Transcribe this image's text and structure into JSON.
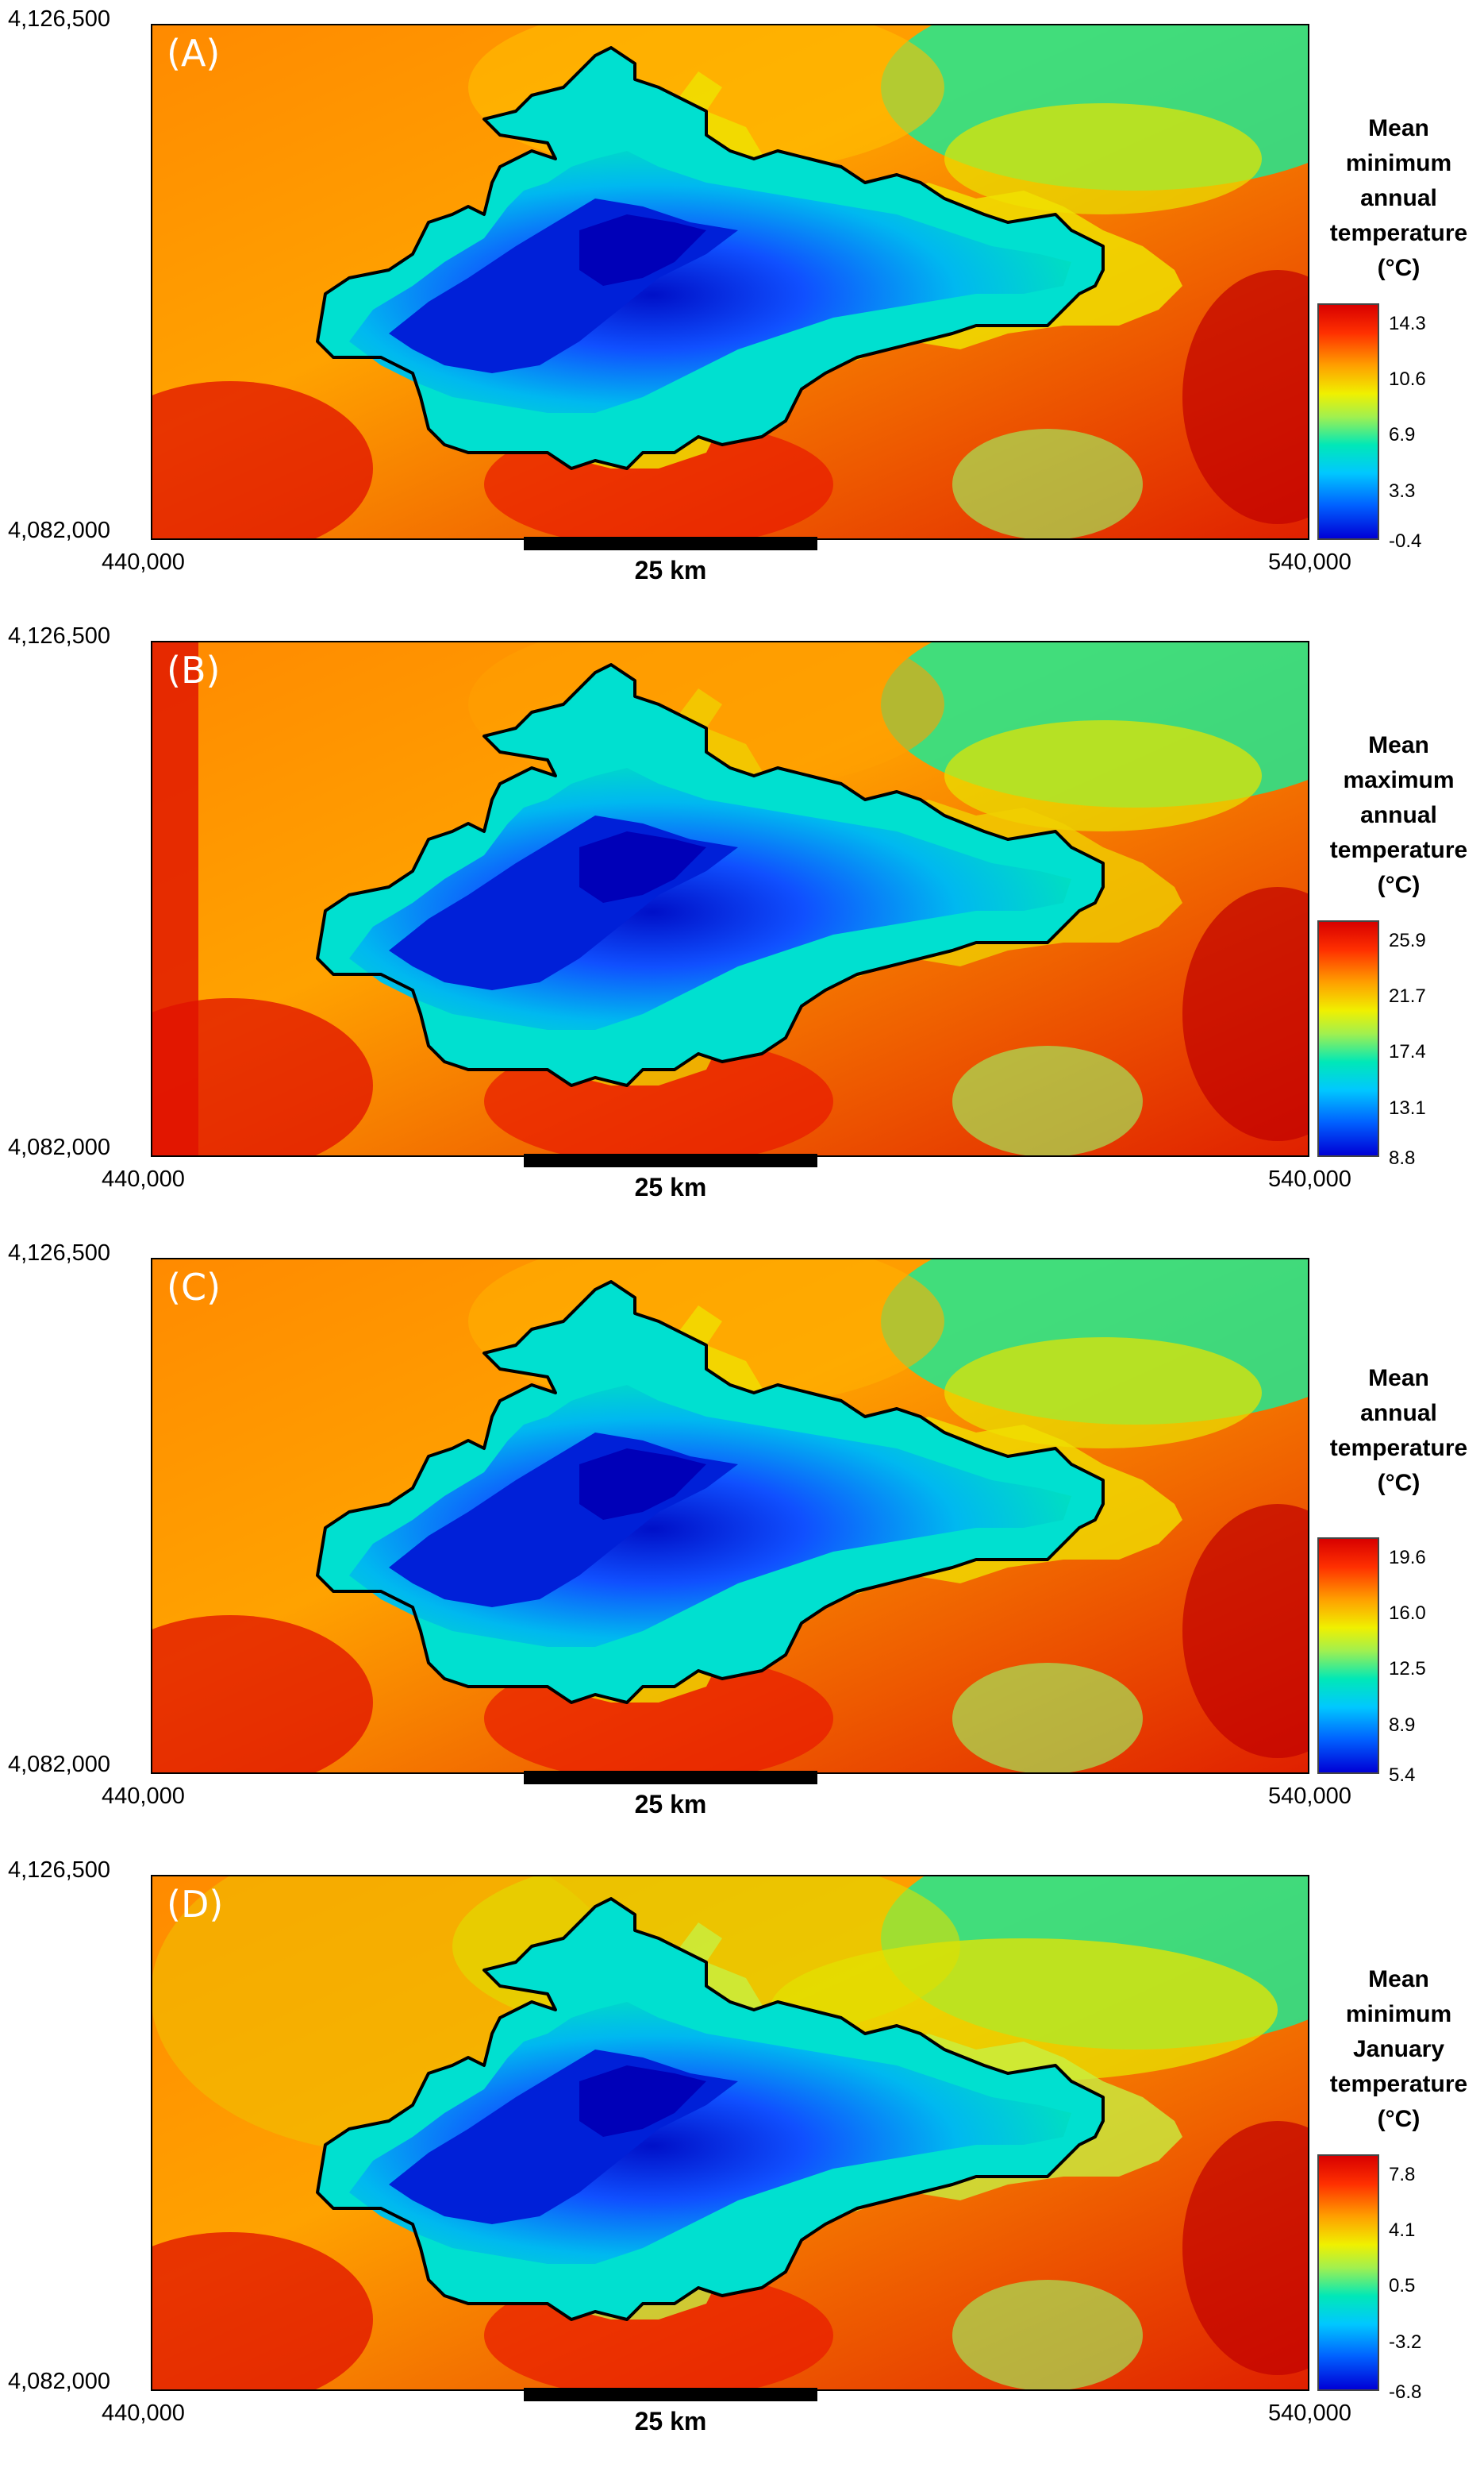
{
  "axes": {
    "y_top": "4,126,500",
    "y_bottom": "4,082,000",
    "x_left": "440,000",
    "x_right": "540,000"
  },
  "scale_bar": "25 km",
  "panels": [
    {
      "label": "(A)",
      "legend_lines": [
        "Mean",
        "minimum",
        "annual",
        "temperature",
        "(°C)"
      ],
      "ticks": [
        "14.3",
        "10.6",
        "6.9",
        "3.3",
        "-0.4"
      ]
    },
    {
      "label": "(B)",
      "legend_lines": [
        "Mean",
        "maximum",
        "annual",
        "temperature",
        "(°C)"
      ],
      "ticks": [
        "25.9",
        "21.7",
        "17.4",
        "13.1",
        "8.8"
      ]
    },
    {
      "label": "(C)",
      "legend_lines": [
        "Mean",
        "annual",
        "temperature",
        "(°C)"
      ],
      "ticks": [
        "19.6",
        "16.0",
        "12.5",
        "8.9",
        "5.4"
      ]
    },
    {
      "label": "(D)",
      "legend_lines": [
        "Mean",
        "minimum",
        "January",
        "temperature",
        "(°C)"
      ],
      "ticks": [
        "7.8",
        "4.1",
        "0.5",
        "-3.2",
        "-6.8"
      ]
    }
  ],
  "colors": {
    "warm": "#e81000",
    "orange": "#ff9a00",
    "yellow": "#e8e400",
    "green": "#20e890",
    "cyan": "#00d8e8",
    "blue": "#0030e0",
    "outline": "#000000"
  }
}
